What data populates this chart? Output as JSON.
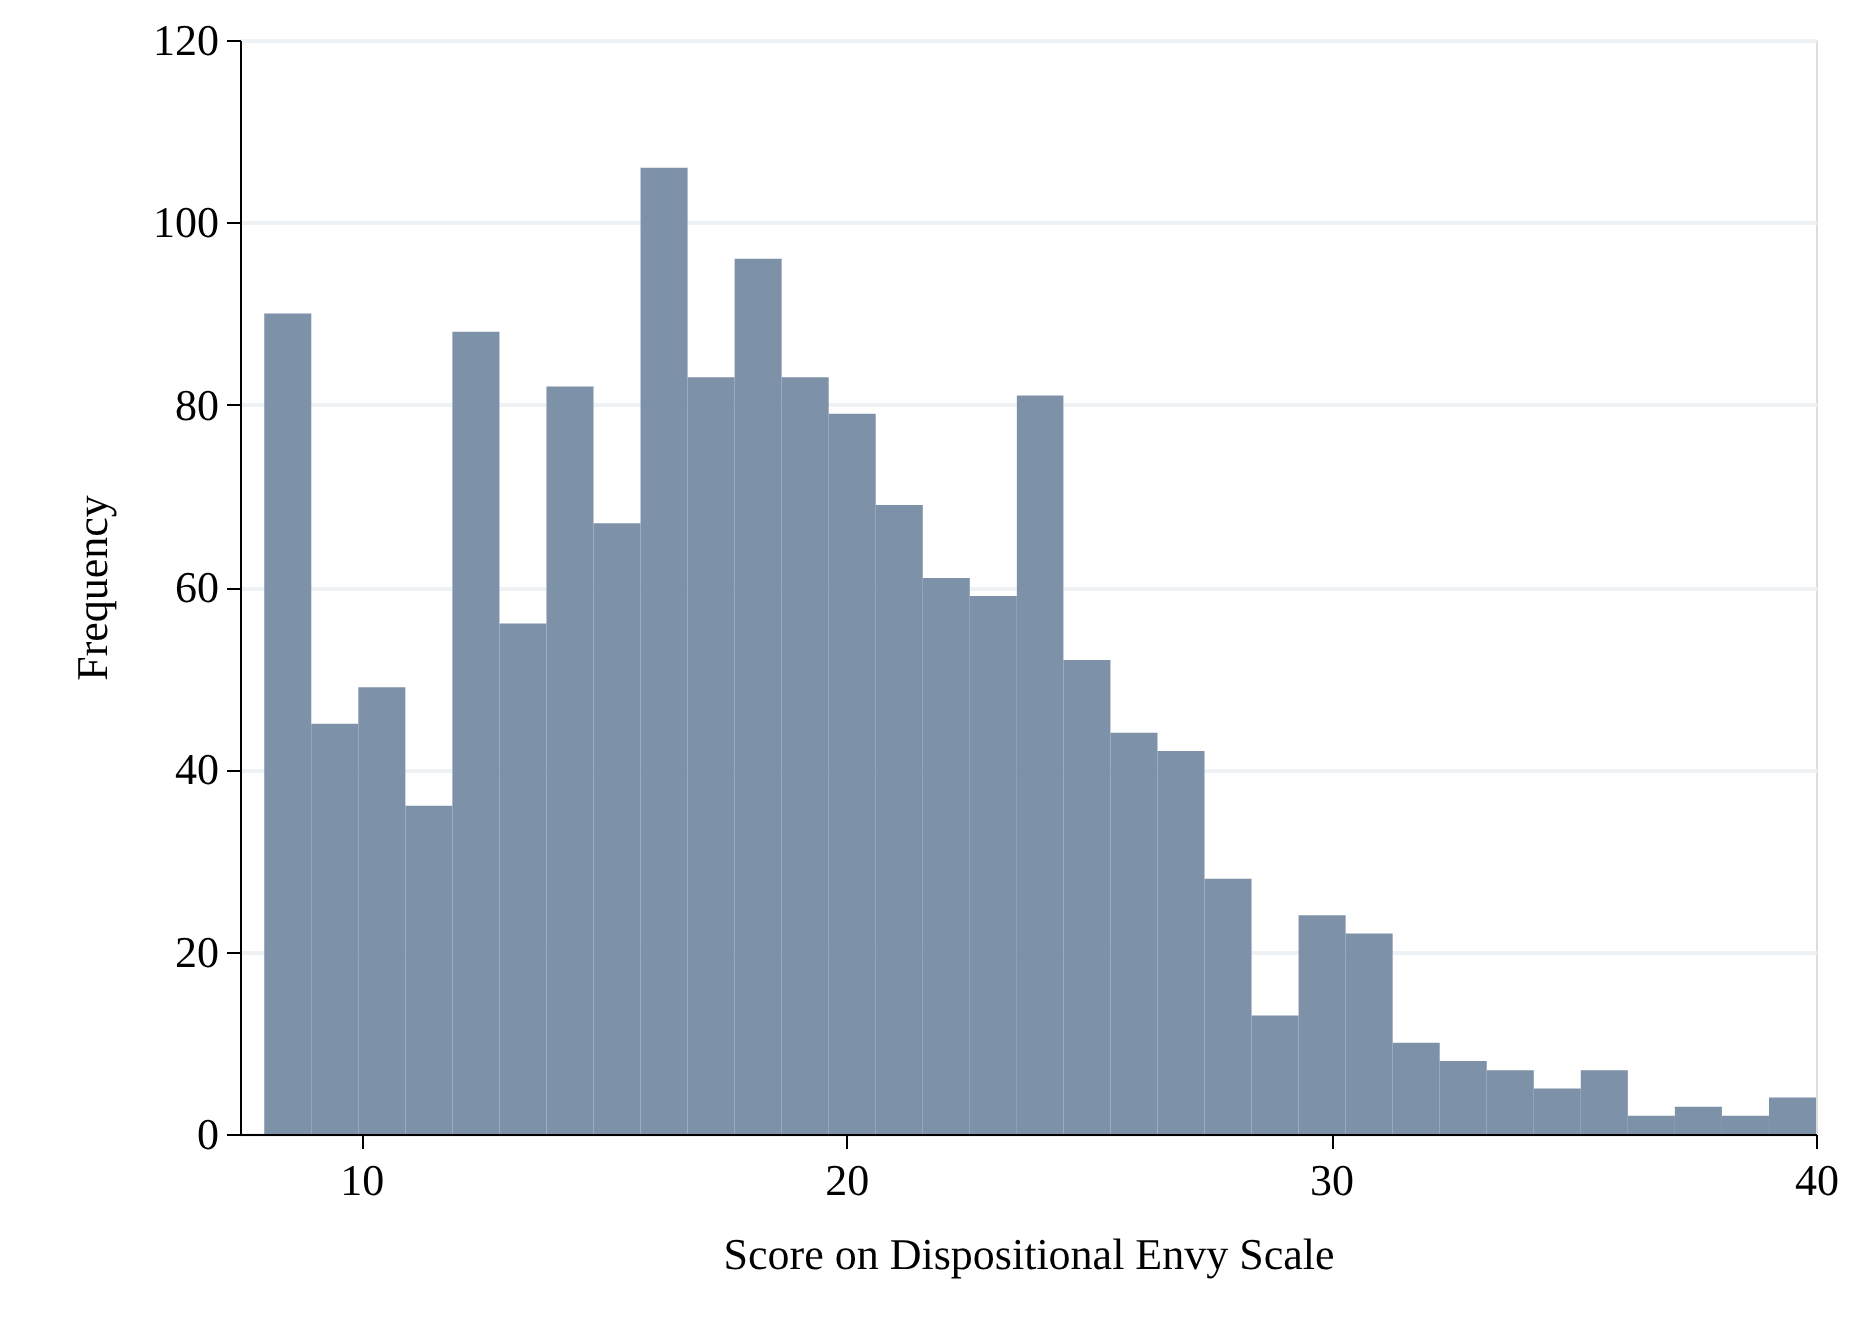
{
  "chart_data": {
    "type": "histogram",
    "xlabel": "Score on Dispositional Envy Scale",
    "ylabel": "Frequency",
    "bins": [
      8,
      8.97,
      9.94,
      10.91,
      11.88,
      12.85,
      13.82,
      14.79,
      15.76,
      16.73,
      17.7,
      18.67,
      19.64,
      20.61,
      21.58,
      22.55,
      23.52,
      24.48,
      25.45,
      26.42,
      27.39,
      28.36,
      29.33,
      30.3,
      31.27,
      32.24,
      33.21,
      34.18,
      35.15,
      36.12,
      37.09,
      38.06,
      39.03,
      40
    ],
    "values": [
      90,
      45,
      49,
      36,
      88,
      56,
      82,
      67,
      106,
      83,
      96,
      83,
      79,
      69,
      61,
      59,
      81,
      52,
      44,
      42,
      28,
      13,
      24,
      22,
      10,
      8,
      7,
      5,
      7,
      2,
      3,
      2,
      4
    ],
    "color": "#7d92a9",
    "xlim": [
      7.5,
      40
    ],
    "xticks": [
      10,
      20,
      30,
      40
    ],
    "ylim": [
      0,
      120
    ],
    "yticks": [
      0,
      20,
      40,
      60,
      80,
      100,
      120
    ],
    "grid": "y"
  }
}
